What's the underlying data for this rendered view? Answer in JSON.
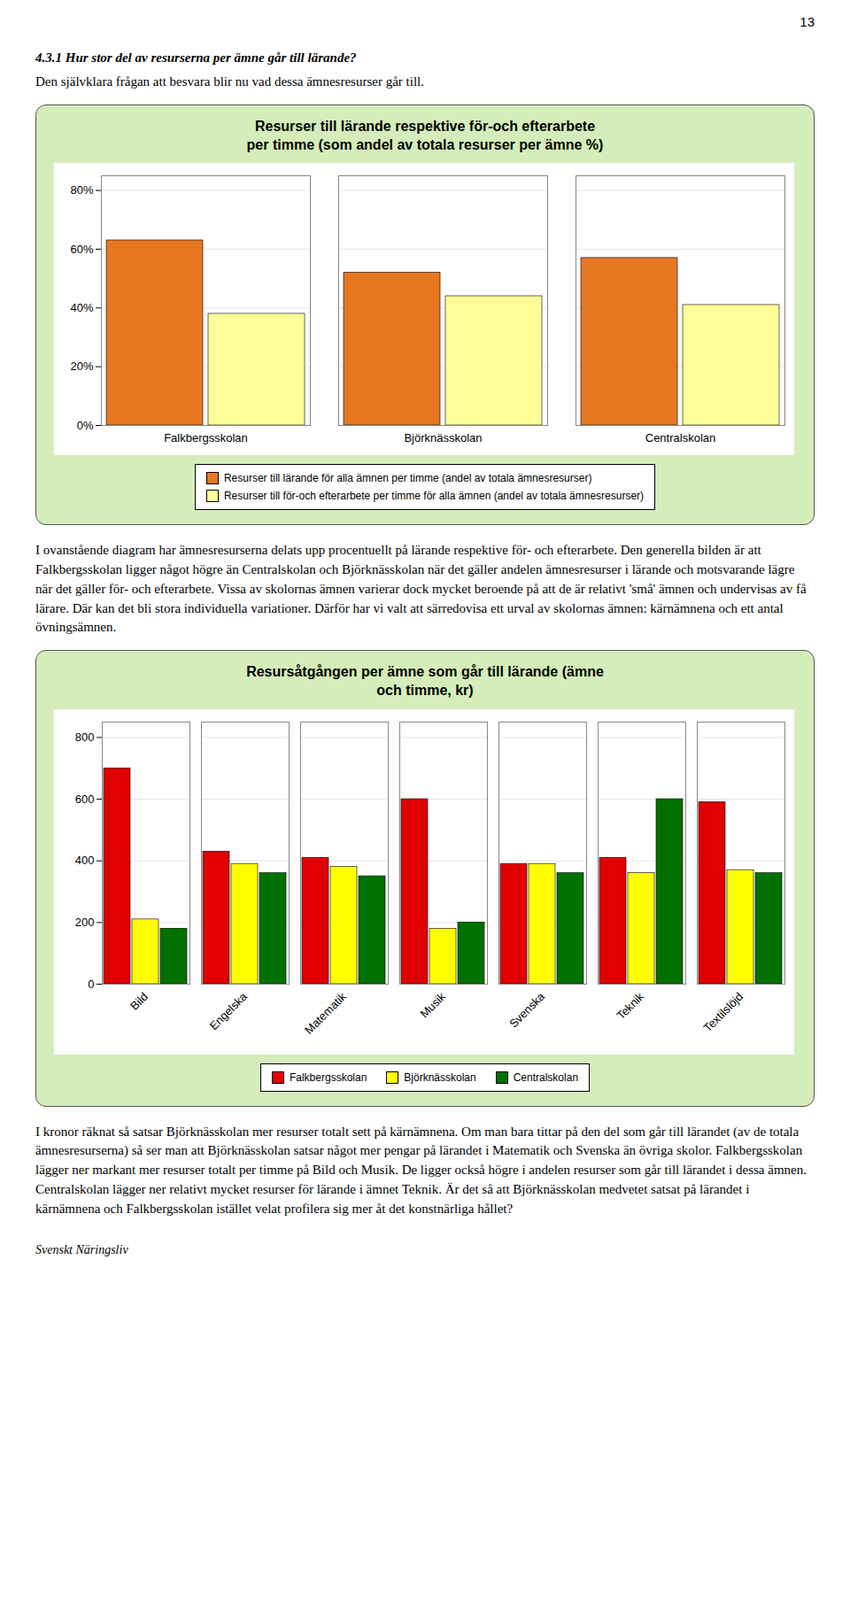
{
  "page_number": "13",
  "heading": "4.3.1 Hur stor del av resurserna per ämne går till lärande?",
  "paragraphs": [
    "Den självklara frågan att besvara blir nu vad dessa ämnesresurser går till.",
    "I ovanstående diagram har ämnesresurserna delats upp procentuellt på lärande respektive för- och efterarbete. Den generella bilden är att Falkbergsskolan ligger något högre än Centralskolan och Björknässkolan när det gäller andelen ämnesresurser i lärande och motsvarande lägre när det gäller för- och efterarbete. Vissa av skolornas ämnen varierar dock mycket beroende på att de är relativt 'små' ämnen och undervisas av få lärare. Där kan det bli stora individuella variationer. Därför har vi valt att särredovisa ett urval av skolornas ämnen: kärnämnena och ett antal övningsämnen.",
    "I kronor räknat så satsar Björknässkolan mer resurser totalt sett på kärnämnena. Om man bara tittar på den del som går till lärandet (av de totala ämnesresurserna) så ser man att Björknässkolan satsar något mer pengar på lärandet i Matematik och Svenska än övriga skolor. Falkbergsskolan lägger ner markant mer resurser totalt per timme på Bild och Musik. De ligger också högre i andelen resurser som går till lärandet i dessa ämnen. Centralskolan lägger ner relativt mycket resurser för lärande i ämnet Teknik. Är det så att Björknässkolan medvetet satsat på lärandet i kärnämnena och Falkbergsskolan istället velat profilera sig mer åt det konstnärliga hållet?"
  ],
  "footer": "Svenskt Näringsliv",
  "chart_data": [
    {
      "type": "bar",
      "title": "Resurser till lärande respektive för-och efterarbete",
      "subtitle": "per timme (som andel av totala resurser per ämne %)",
      "categories": [
        "Falkbergsskolan",
        "Björknässkolan",
        "Centralskolan"
      ],
      "series": [
        {
          "name": "Resurser till lärande för alla ämnen per timme (andel av totala ämnesresurser)",
          "color": "#e87722",
          "values": [
            0.63,
            0.52,
            0.57
          ]
        },
        {
          "name": "Resurser till för-och efterarbete per timme för alla ämnen (andel av totala ämnesresurser)",
          "color": "#ffff99",
          "values": [
            0.38,
            0.44,
            0.41
          ]
        }
      ],
      "ylim": [
        0,
        0.85
      ],
      "yticks": [
        {
          "value": 0,
          "label": "0%"
        },
        {
          "value": 0.2,
          "label": "20%"
        },
        {
          "value": 0.4,
          "label": "40%"
        },
        {
          "value": 0.6,
          "label": "60%"
        },
        {
          "value": 0.8,
          "label": "80%"
        }
      ],
      "grid": true,
      "legend": "bottom"
    },
    {
      "type": "bar",
      "title": "Resursåtgången per ämne som går till lärande (ämne",
      "subtitle": "och timme, kr)",
      "categories": [
        "Bild",
        "Engelska",
        "Matematik",
        "Musik",
        "Svenska",
        "Teknik",
        "Textilslöjd"
      ],
      "series": [
        {
          "name": "Falkbergsskolan",
          "color": "#e00000",
          "values": [
            700,
            430,
            410,
            600,
            390,
            410,
            590
          ]
        },
        {
          "name": "Björknässkolan",
          "color": "#ffff00",
          "values": [
            210,
            390,
            380,
            180,
            390,
            360,
            370
          ]
        },
        {
          "name": "Centralskolan",
          "color": "#007000",
          "values": [
            180,
            360,
            350,
            200,
            360,
            600,
            360
          ]
        }
      ],
      "ylim": [
        0,
        850
      ],
      "yticks": [
        0,
        200,
        400,
        600,
        800
      ],
      "grid": true,
      "legend": "bottom"
    }
  ]
}
